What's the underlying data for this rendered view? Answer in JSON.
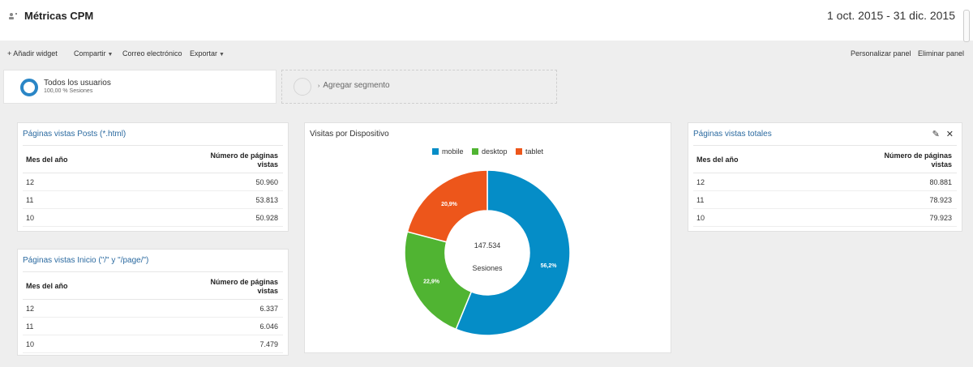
{
  "header": {
    "title": "Métricas CPM",
    "date_range": "1 oct. 2015 - 31 dic. 2015"
  },
  "toolbar": {
    "add_widget": "+ Añadir widget",
    "share": "Compartir",
    "email": "Correo electrónico",
    "export": "Exportar",
    "customize": "Personalizar panel",
    "delete": "Eliminar panel"
  },
  "segments": {
    "active": {
      "name": "Todos los usuarios",
      "sub": "100,00 % Sesiones"
    },
    "add_label": "Agregar segmento"
  },
  "posts_widget": {
    "title": "Páginas vistas Posts (*.html)",
    "col1": "Mes del año",
    "col2_line1": "Número de páginas",
    "col2_line2": "vistas",
    "rows": [
      {
        "month": "12",
        "value": "50.960"
      },
      {
        "month": "11",
        "value": "53.813"
      },
      {
        "month": "10",
        "value": "50.928"
      }
    ]
  },
  "home_widget": {
    "title": "Páginas vistas Inicio (\"/\" y \"/page/\")",
    "col1": "Mes del año",
    "col2_line1": "Número de páginas",
    "col2_line2": "vistas",
    "rows": [
      {
        "month": "12",
        "value": "6.337"
      },
      {
        "month": "11",
        "value": "6.046"
      },
      {
        "month": "10",
        "value": "7.479"
      }
    ]
  },
  "total_widget": {
    "title": "Páginas vistas totales",
    "col1": "Mes del año",
    "col2_line1": "Número de páginas",
    "col2_line2": "vistas",
    "rows": [
      {
        "month": "12",
        "value": "80.881"
      },
      {
        "month": "11",
        "value": "78.923"
      },
      {
        "month": "10",
        "value": "79.923"
      }
    ]
  },
  "device_widget": {
    "title": "Visitas por Dispositivo",
    "center_value": "147.534",
    "center_label": "Sesiones"
  },
  "chart_data": {
    "type": "pie",
    "title": "Visitas por Dispositivo",
    "categories": [
      "mobile",
      "desktop",
      "tablet"
    ],
    "values": [
      56.2,
      22.9,
      20.9
    ],
    "labels": [
      "56,2%",
      "22,9%",
      "20,9%"
    ],
    "colors": [
      "#058dc7",
      "#50b432",
      "#ed561b"
    ],
    "legend": "top"
  }
}
